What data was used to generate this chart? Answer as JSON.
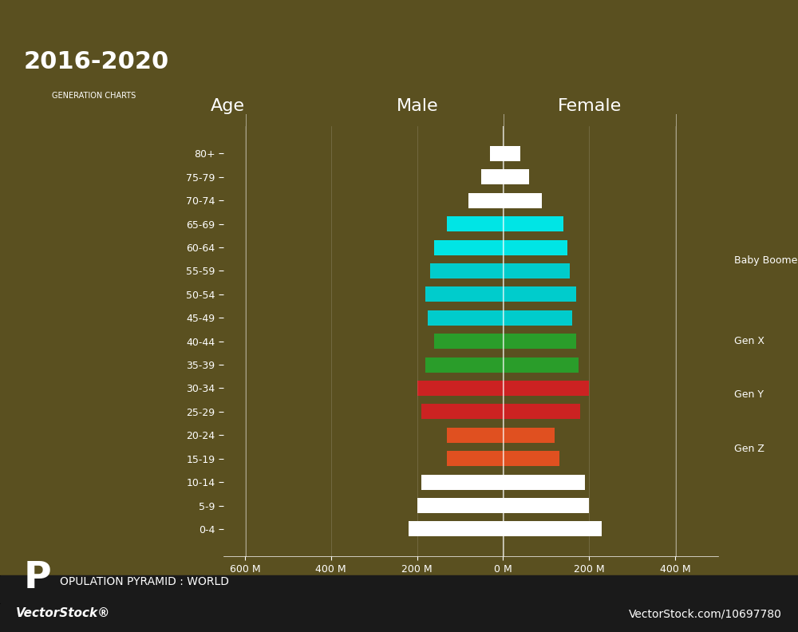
{
  "title_main": "2016-2020",
  "title_sub": "GENERATION CHARTS",
  "footer_text": "POPULATION PYRAMID : WORLD",
  "footer_big": "P",
  "watermark_top": "VectorStock®",
  "watermark_bottom": "VectorStock.com/10697780",
  "background_color": "#5a5020",
  "bar_bg": "#4a4015",
  "footer_bg": "#1a1a1a",
  "age_groups": [
    "80+",
    "75-79",
    "70-74",
    "65-69",
    "60-64",
    "55-59",
    "50-54",
    "45-49",
    "40-44",
    "35-39",
    "30-34",
    "25-29",
    "20-24",
    "15-19",
    "10-14",
    "5-9",
    "0-4"
  ],
  "male_values": [
    30,
    50,
    80,
    130,
    160,
    170,
    180,
    175,
    160,
    180,
    200,
    190,
    130,
    130,
    190,
    200,
    220
  ],
  "female_values": [
    40,
    60,
    90,
    140,
    150,
    155,
    170,
    160,
    170,
    175,
    200,
    180,
    120,
    130,
    190,
    200,
    230
  ],
  "colors": {
    "white_bars": [
      "80+",
      "75-79",
      "70-74",
      "10-14",
      "5-9",
      "0-4"
    ],
    "cyan_bars": [
      "65-69",
      "60-64",
      "55-59",
      "50-54",
      "45-49"
    ],
    "green_bars": [
      "40-44",
      "35-39"
    ],
    "red_bars": [
      "30-34",
      "25-29"
    ],
    "orange_bars": [
      "20-24",
      "15-19"
    ]
  },
  "bar_color_map": {
    "80+": "#ffffff",
    "75-79": "#ffffff",
    "70-74": "#ffffff",
    "65-69": "#00e5e5",
    "60-64": "#00e5e5",
    "55-59": "#00cccc",
    "50-54": "#00cccc",
    "45-49": "#00cccc",
    "40-44": "#2a9d2a",
    "35-39": "#2a9d2a",
    "30-34": "#cc2222",
    "25-29": "#cc2222",
    "20-24": "#e05020",
    "15-19": "#e05020",
    "10-14": "#ffffff",
    "5-9": "#ffffff",
    "0-4": "#ffffff"
  },
  "generation_labels": {
    "Baby Boomer": "55-59",
    "Gen X": "40-44",
    "Gen Y": "30-34",
    "Gen Z": "20-24"
  },
  "xlabel_ticks": [
    -600,
    -400,
    -200,
    0,
    200,
    400
  ],
  "xlabel_labels": [
    "600 M",
    "400 M",
    "200 M",
    "0 M",
    "200 M",
    "400 M"
  ],
  "axis_label_male": "Male",
  "axis_label_female": "Female",
  "axis_label_age": "Age",
  "xlim": [
    -650,
    500
  ]
}
